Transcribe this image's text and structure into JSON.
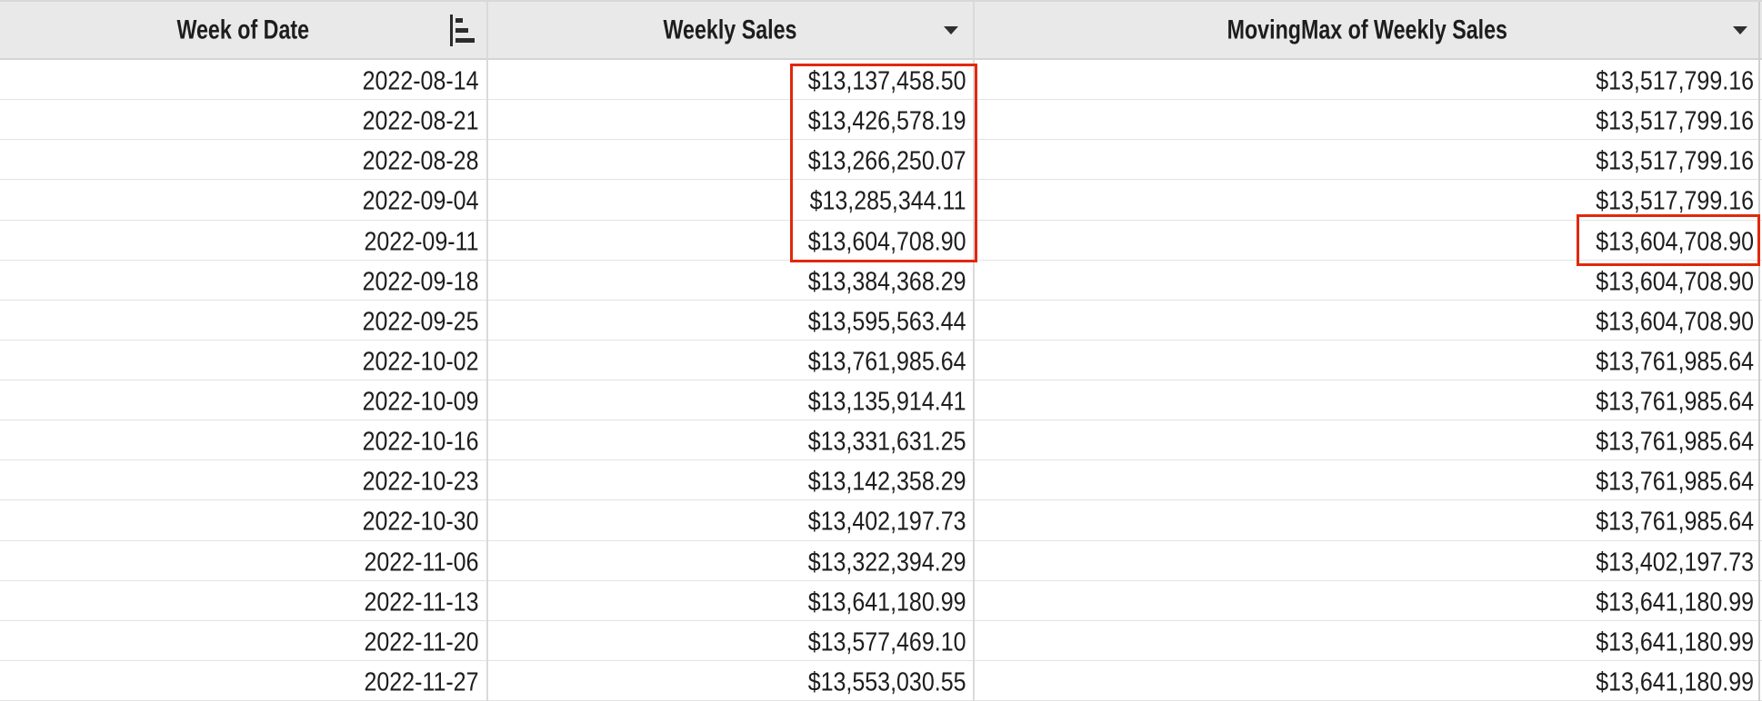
{
  "table": {
    "columns": [
      {
        "key": "week_of_date",
        "label": "Week of Date",
        "icon": "sort-ascending-icon"
      },
      {
        "key": "weekly_sales",
        "label": "Weekly Sales",
        "icon": "caret-down-icon"
      },
      {
        "key": "movingmax_of_weekly_sales",
        "label": "MovingMax of Weekly Sales",
        "icon": "caret-down-icon"
      }
    ],
    "rows": [
      {
        "week_of_date": "2022-08-14",
        "weekly_sales": "$13,137,458.50",
        "movingmax_of_weekly_sales": "$13,517,799.16"
      },
      {
        "week_of_date": "2022-08-21",
        "weekly_sales": "$13,426,578.19",
        "movingmax_of_weekly_sales": "$13,517,799.16"
      },
      {
        "week_of_date": "2022-08-28",
        "weekly_sales": "$13,266,250.07",
        "movingmax_of_weekly_sales": "$13,517,799.16"
      },
      {
        "week_of_date": "2022-09-04",
        "weekly_sales": "$13,285,344.11",
        "movingmax_of_weekly_sales": "$13,517,799.16"
      },
      {
        "week_of_date": "2022-09-11",
        "weekly_sales": "$13,604,708.90",
        "movingmax_of_weekly_sales": "$13,604,708.90"
      },
      {
        "week_of_date": "2022-09-18",
        "weekly_sales": "$13,384,368.29",
        "movingmax_of_weekly_sales": "$13,604,708.90"
      },
      {
        "week_of_date": "2022-09-25",
        "weekly_sales": "$13,595,563.44",
        "movingmax_of_weekly_sales": "$13,604,708.90"
      },
      {
        "week_of_date": "2022-10-02",
        "weekly_sales": "$13,761,985.64",
        "movingmax_of_weekly_sales": "$13,761,985.64"
      },
      {
        "week_of_date": "2022-10-09",
        "weekly_sales": "$13,135,914.41",
        "movingmax_of_weekly_sales": "$13,761,985.64"
      },
      {
        "week_of_date": "2022-10-16",
        "weekly_sales": "$13,331,631.25",
        "movingmax_of_weekly_sales": "$13,761,985.64"
      },
      {
        "week_of_date": "2022-10-23",
        "weekly_sales": "$13,142,358.29",
        "movingmax_of_weekly_sales": "$13,761,985.64"
      },
      {
        "week_of_date": "2022-10-30",
        "weekly_sales": "$13,402,197.73",
        "movingmax_of_weekly_sales": "$13,761,985.64"
      },
      {
        "week_of_date": "2022-11-06",
        "weekly_sales": "$13,322,394.29",
        "movingmax_of_weekly_sales": "$13,402,197.73"
      },
      {
        "week_of_date": "2022-11-13",
        "weekly_sales": "$13,641,180.99",
        "movingmax_of_weekly_sales": "$13,641,180.99"
      },
      {
        "week_of_date": "2022-11-20",
        "weekly_sales": "$13,577,469.10",
        "movingmax_of_weekly_sales": "$13,641,180.99"
      },
      {
        "week_of_date": "2022-11-27",
        "weekly_sales": "$13,553,030.55",
        "movingmax_of_weekly_sales": "$13,641,180.99"
      }
    ]
  },
  "annotations": {
    "highlight_color": "#e1280c",
    "boxes": [
      {
        "name": "weekly-sales-highlight",
        "column": "weekly_sales",
        "rows": "2022-08-14 to 2022-09-11"
      },
      {
        "name": "movingmax-highlight",
        "column": "movingmax_of_weekly_sales",
        "rows": "2022-09-11"
      }
    ]
  },
  "colors": {
    "header_background": "#e9e9e9",
    "row_background": "#ffffff",
    "text": "#1d1d1d",
    "gridline": "#dadada",
    "highlight": "#e1280c"
  }
}
